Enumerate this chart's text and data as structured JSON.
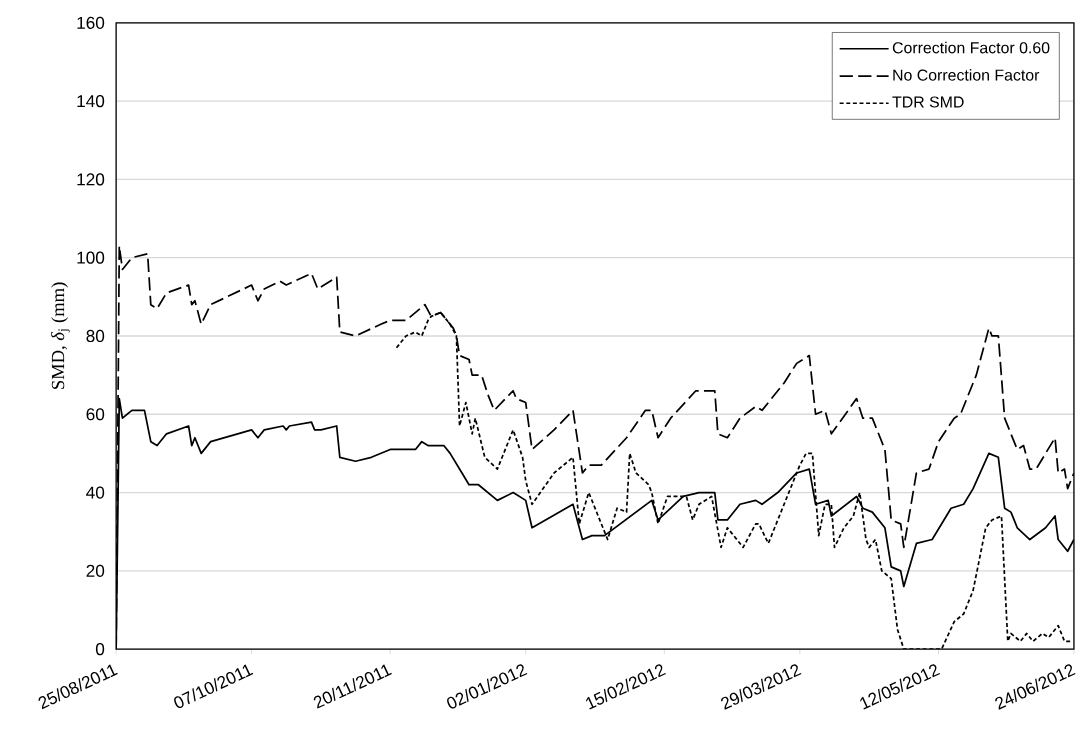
{
  "chart_data": {
    "type": "line",
    "ylabel": "SMD, *δ*$_{j}$ (mm)",
    "xlim": [
      "2011-08-25",
      "2012-06-24"
    ],
    "ylim": [
      0,
      160
    ],
    "xticks": [
      {
        "value": "2011-08-25",
        "label": "25/08/2011"
      },
      {
        "value": "2011-10-07",
        "label": "07/10/2011"
      },
      {
        "value": "2011-11-20",
        "label": "20/11/2011"
      },
      {
        "value": "2012-01-02",
        "label": "02/01/2012"
      },
      {
        "value": "2012-02-15",
        "label": "15/02/2012"
      },
      {
        "value": "2012-03-29",
        "label": "29/03/2012"
      },
      {
        "value": "2012-05-12",
        "label": "12/05/2012"
      },
      {
        "value": "2012-06-24",
        "label": "24/06/2012"
      }
    ],
    "yticks": [
      0,
      20,
      40,
      60,
      80,
      100,
      120,
      140,
      160
    ],
    "grid": "y",
    "legend": "top right",
    "marker": "none",
    "series": [
      {
        "name": "Correction Factor 0.60",
        "color": "#000000",
        "line_style": "solid",
        "x": [
          "2011-08-25",
          "2011-08-26",
          "2011-08-27",
          "2011-08-30",
          "2011-09-03",
          "2011-09-05",
          "2011-09-07",
          "2011-09-10",
          "2011-09-17",
          "2011-09-18",
          "2011-09-19",
          "2011-09-21",
          "2011-09-24",
          "2011-10-07",
          "2011-10-09",
          "2011-10-11",
          "2011-10-17",
          "2011-10-18",
          "2011-10-19",
          "2011-10-26",
          "2011-10-27",
          "2011-10-29",
          "2011-11-03",
          "2011-11-04",
          "2011-11-09",
          "2011-11-14",
          "2011-11-20",
          "2011-11-25",
          "2011-11-28",
          "2011-11-30",
          "2011-12-02",
          "2011-12-07",
          "2011-12-09",
          "2011-12-12",
          "2011-12-15",
          "2011-12-18",
          "2011-12-24",
          "2011-12-29",
          "2012-01-02",
          "2012-01-04",
          "2012-01-17",
          "2012-01-20",
          "2012-01-23",
          "2012-01-27",
          "2012-02-11",
          "2012-02-13",
          "2012-02-21",
          "2012-02-26",
          "2012-03-02",
          "2012-03-03",
          "2012-03-06",
          "2012-03-10",
          "2012-03-15",
          "2012-03-17",
          "2012-03-22",
          "2012-03-28",
          "2012-04-01",
          "2012-04-03",
          "2012-04-07",
          "2012-04-08",
          "2012-04-16",
          "2012-04-18",
          "2012-04-21",
          "2012-04-25",
          "2012-04-27",
          "2012-04-30",
          "2012-05-01",
          "2012-05-05",
          "2012-05-10",
          "2012-05-16",
          "2012-05-20",
          "2012-05-23",
          "2012-05-28",
          "2012-05-31",
          "2012-06-02",
          "2012-06-04",
          "2012-06-06",
          "2012-06-10",
          "2012-06-15",
          "2012-06-18",
          "2012-06-19",
          "2012-06-22",
          "2012-06-24"
        ],
        "values": [
          0,
          64,
          59,
          61,
          61,
          53,
          52,
          55,
          57,
          52,
          54,
          50,
          53,
          56,
          54,
          56,
          57,
          56,
          57,
          58,
          56,
          56,
          57,
          49,
          48,
          49,
          51,
          51,
          51,
          53,
          52,
          52,
          50,
          46,
          42,
          42,
          38,
          40,
          38,
          31,
          37,
          28,
          29,
          29,
          38,
          33,
          39,
          40,
          40,
          33,
          33,
          37,
          38,
          37,
          40,
          45,
          46,
          37,
          38,
          34,
          39,
          36,
          35,
          31,
          21,
          20,
          16,
          27,
          28,
          36,
          37,
          41,
          50,
          49,
          36,
          35,
          31,
          28,
          31,
          34,
          28,
          25,
          28
        ]
      },
      {
        "name": "No Correction Factor",
        "color": "#000000",
        "line_style": "dashed",
        "x": [
          "2011-08-25",
          "2011-08-26",
          "2011-08-27",
          "2011-08-30",
          "2011-09-04",
          "2011-09-05",
          "2011-09-07",
          "2011-09-10",
          "2011-09-17",
          "2011-09-18",
          "2011-09-19",
          "2011-09-21",
          "2011-09-24",
          "2011-10-07",
          "2011-10-09",
          "2011-10-11",
          "2011-10-16",
          "2011-10-18",
          "2011-10-26",
          "2011-10-28",
          "2011-11-03",
          "2011-11-04",
          "2011-11-09",
          "2011-11-17",
          "2011-11-20",
          "2011-11-25",
          "2011-12-01",
          "2011-12-03",
          "2011-12-06",
          "2011-12-10",
          "2011-12-11",
          "2011-12-12",
          "2011-12-15",
          "2011-12-16",
          "2011-12-19",
          "2011-12-21",
          "2011-12-23",
          "2011-12-29",
          "2011-12-30",
          "2012-01-02",
          "2012-01-04",
          "2012-01-11",
          "2012-01-17",
          "2012-01-20",
          "2012-01-22",
          "2012-01-26",
          "2012-02-03",
          "2012-02-09",
          "2012-02-11",
          "2012-02-13",
          "2012-02-17",
          "2012-02-25",
          "2012-03-02",
          "2012-03-03",
          "2012-03-06",
          "2012-03-10",
          "2012-03-15",
          "2012-03-17",
          "2012-03-24",
          "2012-03-28",
          "2012-04-01",
          "2012-04-03",
          "2012-04-06",
          "2012-04-08",
          "2012-04-16",
          "2012-04-18",
          "2012-04-21",
          "2012-04-25",
          "2012-04-27",
          "2012-04-30",
          "2012-05-01",
          "2012-05-05",
          "2012-05-09",
          "2012-05-12",
          "2012-05-17",
          "2012-05-19",
          "2012-05-24",
          "2012-05-28",
          "2012-05-29",
          "2012-05-31",
          "2012-06-02",
          "2012-06-04",
          "2012-06-06",
          "2012-06-08",
          "2012-06-10",
          "2012-06-12",
          "2012-06-15",
          "2012-06-18",
          "2012-06-19",
          "2012-06-21",
          "2012-06-22",
          "2012-06-24"
        ],
        "values": [
          0,
          103,
          97,
          100,
          101,
          88,
          87,
          91,
          93,
          88,
          89,
          83,
          88,
          93,
          89,
          92,
          94,
          93,
          96,
          92,
          95,
          81,
          80,
          83,
          84,
          84,
          88,
          85,
          86,
          82,
          80,
          75,
          74,
          70,
          70,
          65,
          61,
          66,
          64,
          63,
          51,
          56,
          61,
          45,
          47,
          47,
          54,
          61,
          61,
          54,
          59,
          66,
          66,
          55,
          54,
          59,
          62,
          61,
          68,
          73,
          75,
          60,
          61,
          55,
          64,
          59,
          59,
          51,
          33,
          32,
          26,
          45,
          46,
          53,
          59,
          60,
          70,
          82,
          80,
          80,
          59,
          55,
          51,
          52,
          46,
          46,
          50,
          54,
          45,
          46,
          41,
          45
        ]
      },
      {
        "name": "TDR SMD",
        "color": "#000000",
        "line_style": "dotted",
        "x": [
          "2011-11-22",
          "2011-11-25",
          "2011-11-28",
          "2011-11-30",
          "2011-12-02",
          "2011-12-03",
          "2011-12-06",
          "2011-12-09",
          "2011-12-11",
          "2011-12-12",
          "2011-12-14",
          "2011-12-16",
          "2011-12-17",
          "2011-12-20",
          "2011-12-24",
          "2011-12-29",
          "2012-01-01",
          "2012-01-02",
          "2012-01-04",
          "2012-01-11",
          "2012-01-17",
          "2012-01-19",
          "2012-01-22",
          "2012-01-25",
          "2012-01-28",
          "2012-01-31",
          "2012-02-03",
          "2012-02-04",
          "2012-02-06",
          "2012-02-10",
          "2012-02-11",
          "2012-02-13",
          "2012-02-16",
          "2012-02-22",
          "2012-02-24",
          "2012-02-26",
          "2012-03-01",
          "2012-03-04",
          "2012-03-06",
          "2012-03-08",
          "2012-03-11",
          "2012-03-15",
          "2012-03-16",
          "2012-03-19",
          "2012-03-27",
          "2012-03-29",
          "2012-03-31",
          "2012-04-02",
          "2012-04-04",
          "2012-04-06",
          "2012-04-08",
          "2012-04-09",
          "2012-04-12",
          "2012-04-15",
          "2012-04-17",
          "2012-04-19",
          "2012-04-20",
          "2012-04-22",
          "2012-04-24",
          "2012-04-27",
          "2012-04-29",
          "2012-05-01",
          "2012-05-13",
          "2012-05-17",
          "2012-05-20",
          "2012-05-23",
          "2012-05-27",
          "2012-05-29",
          "2012-06-01",
          "2012-06-03",
          "2012-06-04",
          "2012-06-07",
          "2012-06-09",
          "2012-06-11",
          "2012-06-14",
          "2012-06-16",
          "2012-06-19",
          "2012-06-21",
          "2012-06-23"
        ],
        "values": [
          77,
          80,
          81,
          80,
          84,
          85,
          86,
          83,
          80,
          57,
          63,
          55,
          59,
          49,
          46,
          56,
          49,
          43,
          37,
          45,
          49,
          32,
          40,
          34,
          28,
          36,
          35,
          50,
          45,
          42,
          40,
          32,
          39,
          39,
          33,
          37,
          39,
          26,
          31,
          29,
          26,
          32,
          32,
          27,
          43,
          47,
          50,
          50,
          29,
          37,
          37,
          26,
          31,
          34,
          40,
          28,
          26,
          28,
          20,
          18,
          5,
          0,
          0,
          7,
          9,
          15,
          31,
          33,
          34,
          2,
          4,
          2,
          4,
          2,
          4,
          3,
          6,
          2,
          2
        ]
      }
    ]
  }
}
